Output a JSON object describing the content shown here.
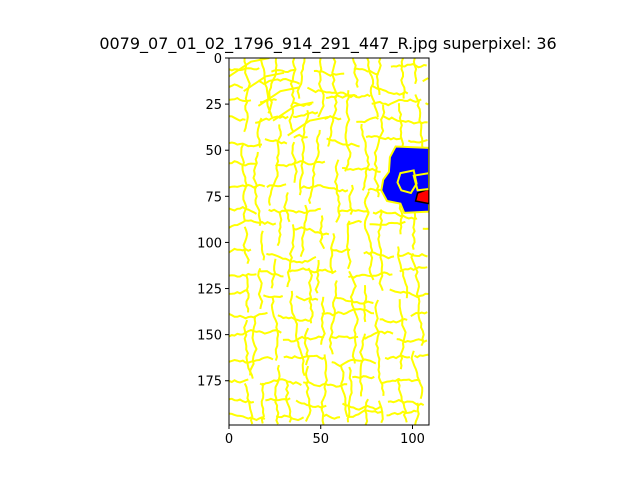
{
  "chart_data": {
    "type": "heatmap",
    "title": "0079_07_01_02_1796_914_291_447_R.jpg superpixel: 36",
    "xlim": [
      0,
      109
    ],
    "ylim": [
      199,
      0
    ],
    "x_ticks": [
      0,
      50,
      100
    ],
    "y_ticks": [
      0,
      25,
      50,
      75,
      100,
      125,
      150,
      175
    ],
    "grid": false,
    "legend": "none",
    "colors": {
      "background": "#ffffff",
      "boundary": "#ffff00",
      "highlight_region": "#0000ff",
      "highlight_inner": "#ff0000",
      "inner_outline": "#000000"
    },
    "highlight_region": {
      "x_range": [
        83,
        109
      ],
      "y_range": [
        48,
        84
      ]
    }
  }
}
